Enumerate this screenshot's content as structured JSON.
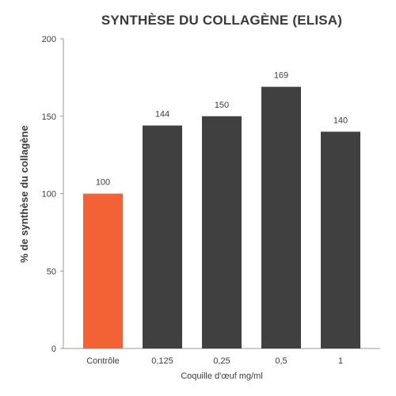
{
  "chart_data": {
    "type": "bar",
    "title": "SYNTHÈSE DU COLLAGÈNE (ELISA)",
    "xlabel": "Coquille d'œuf mg/ml",
    "ylabel": "% de synthèse du collagène",
    "categories": [
      "Contrôle",
      "0,125",
      "0,25",
      "0,5",
      "1"
    ],
    "values": [
      100,
      144,
      150,
      169,
      140
    ],
    "data_labels": [
      "100",
      "144",
      "150",
      "169",
      "140"
    ],
    "ylim": [
      0,
      200
    ],
    "yticks": [
      0,
      50,
      100,
      150,
      200
    ],
    "grid": false,
    "legend": "none",
    "colors": {
      "control": "#f26234",
      "treatment": "#404040",
      "axis": "#9a9a9a",
      "text": "#3c3c3c"
    },
    "bar_colors": [
      "#f26234",
      "#404040",
      "#404040",
      "#404040",
      "#404040"
    ]
  }
}
